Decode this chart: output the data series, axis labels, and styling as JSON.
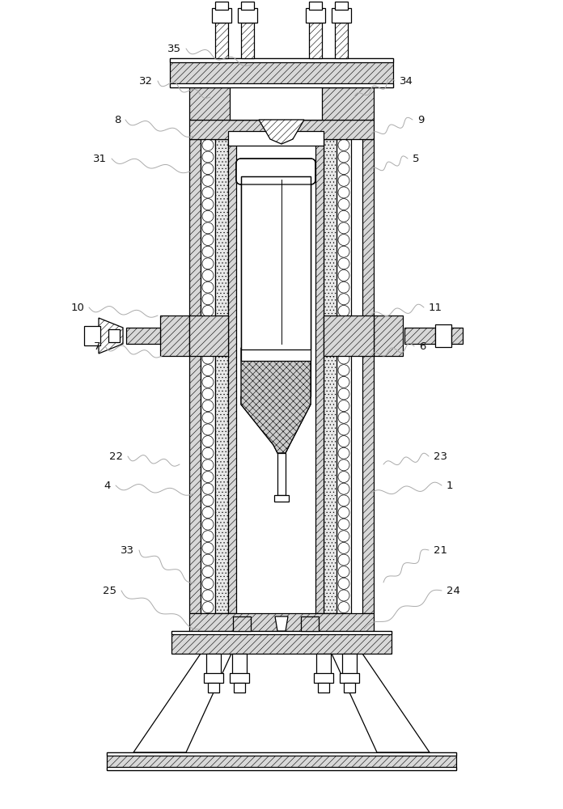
{
  "bg": "#ffffff",
  "lc": "#000000",
  "hatch_fc": "#d8d8d8",
  "coil_fc": "#ffffff",
  "ins_fc": "#e0e0e0",
  "lw": 0.9,
  "label_font": 9.5,
  "wavy_color": "#aaaaaa",
  "leaders_left": [
    [
      "35",
      230,
      60,
      310,
      80
    ],
    [
      "32",
      195,
      100,
      260,
      120
    ],
    [
      "8",
      155,
      148,
      240,
      168
    ],
    [
      "31",
      138,
      196,
      235,
      212
    ],
    [
      "10",
      110,
      380,
      195,
      390
    ],
    [
      "7",
      130,
      428,
      200,
      440
    ],
    [
      "22",
      158,
      564,
      222,
      574
    ],
    [
      "4",
      143,
      600,
      240,
      610
    ],
    [
      "33",
      172,
      680,
      240,
      720
    ],
    [
      "25",
      150,
      730,
      248,
      778
    ]
  ],
  "leaders_right": [
    [
      "34",
      488,
      100,
      438,
      120
    ],
    [
      "9",
      510,
      148,
      458,
      168
    ],
    [
      "5",
      504,
      196,
      458,
      212
    ],
    [
      "11",
      524,
      380,
      458,
      390
    ],
    [
      "6",
      512,
      428,
      458,
      440
    ],
    [
      "23",
      530,
      564,
      474,
      574
    ],
    [
      "1",
      546,
      600,
      458,
      610
    ],
    [
      "21",
      530,
      680,
      474,
      720
    ],
    [
      "24",
      546,
      730,
      450,
      778
    ]
  ]
}
